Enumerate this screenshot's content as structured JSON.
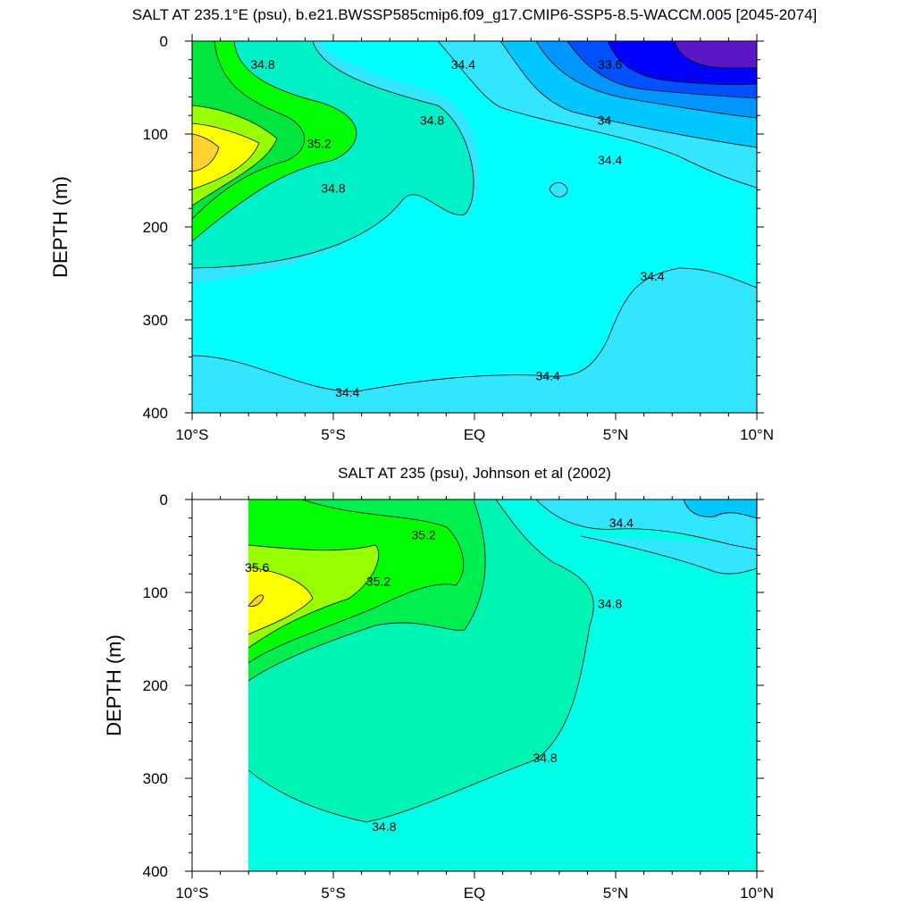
{
  "chart_data": [
    {
      "type": "contour",
      "title": "SALT AT 235.1°E (psu), b.e21.BWSSP585cmip6.f09_g17.CMIP6-SSP5-8.5-WACCM.005 [2045-2074]",
      "xlabel": "",
      "ylabel": "DEPTH (m)",
      "xlim": [
        -10,
        10
      ],
      "ylim": [
        0,
        400
      ],
      "y_inverted": true,
      "x_ticks": [
        -10,
        -5,
        0,
        5,
        10
      ],
      "x_tick_labels": [
        "10°S",
        "5°S",
        "EQ",
        "5°N",
        "10°N"
      ],
      "y_ticks": [
        0,
        100,
        200,
        300,
        400
      ],
      "y_tick_labels": [
        "0",
        "100",
        "200",
        "300",
        "400"
      ],
      "contour_interval": 0.2,
      "colors": {
        "33.4": "#5b16c8",
        "33.6": "#0000ff",
        "33.8": "#0050ff",
        "34.0": "#0096ff",
        "34.2": "#00c8ff",
        "34.4": "#33e6ff",
        "34.6": "#00ffff",
        "34.8": "#00f0c8",
        "35.0": "#00ff00",
        "35.2": "#00e63c",
        "35.4": "#96ff00",
        "35.6": "#ffff00",
        "35.8": "#ffd232"
      },
      "contour_labels": [
        {
          "text": "34.8",
          "x": -7.5,
          "y": 25
        },
        {
          "text": "34.4",
          "x": -0.4,
          "y": 25
        },
        {
          "text": "33.6",
          "x": 4.8,
          "y": 25
        },
        {
          "text": "34.8",
          "x": -1.5,
          "y": 85
        },
        {
          "text": "35.2",
          "x": -5.5,
          "y": 110
        },
        {
          "text": "34",
          "x": 4.6,
          "y": 85
        },
        {
          "text": "34.4",
          "x": 4.8,
          "y": 128
        },
        {
          "text": "34.8",
          "x": -5.0,
          "y": 158
        },
        {
          "text": "34.4",
          "x": 6.3,
          "y": 253
        },
        {
          "text": "34.4",
          "x": 2.6,
          "y": 360
        },
        {
          "text": "34.4",
          "x": -4.5,
          "y": 378
        }
      ]
    },
    {
      "type": "contour",
      "title": "SALT AT 235 (psu), Johnson et al (2002)",
      "xlabel": "",
      "ylabel": "DEPTH (m)",
      "xlim": [
        -10,
        10
      ],
      "ylim": [
        0,
        400
      ],
      "y_inverted": true,
      "x_ticks": [
        -10,
        -5,
        0,
        5,
        10
      ],
      "x_tick_labels": [
        "10°S",
        "5°S",
        "EQ",
        "5°N",
        "10°N"
      ],
      "y_ticks": [
        0,
        100,
        200,
        300,
        400
      ],
      "y_tick_labels": [
        "0",
        "100",
        "200",
        "300",
        "400"
      ],
      "contour_labels": [
        {
          "text": "35.2",
          "x": -1.8,
          "y": 38
        },
        {
          "text": "34.4",
          "x": 5.2,
          "y": 25
        },
        {
          "text": "35.6",
          "x": -7.7,
          "y": 73
        },
        {
          "text": "35.2",
          "x": -3.4,
          "y": 88
        },
        {
          "text": "34.8",
          "x": 4.8,
          "y": 112
        },
        {
          "text": "34.8",
          "x": 2.5,
          "y": 278
        },
        {
          "text": "34.8",
          "x": -3.2,
          "y": 352
        }
      ]
    }
  ]
}
